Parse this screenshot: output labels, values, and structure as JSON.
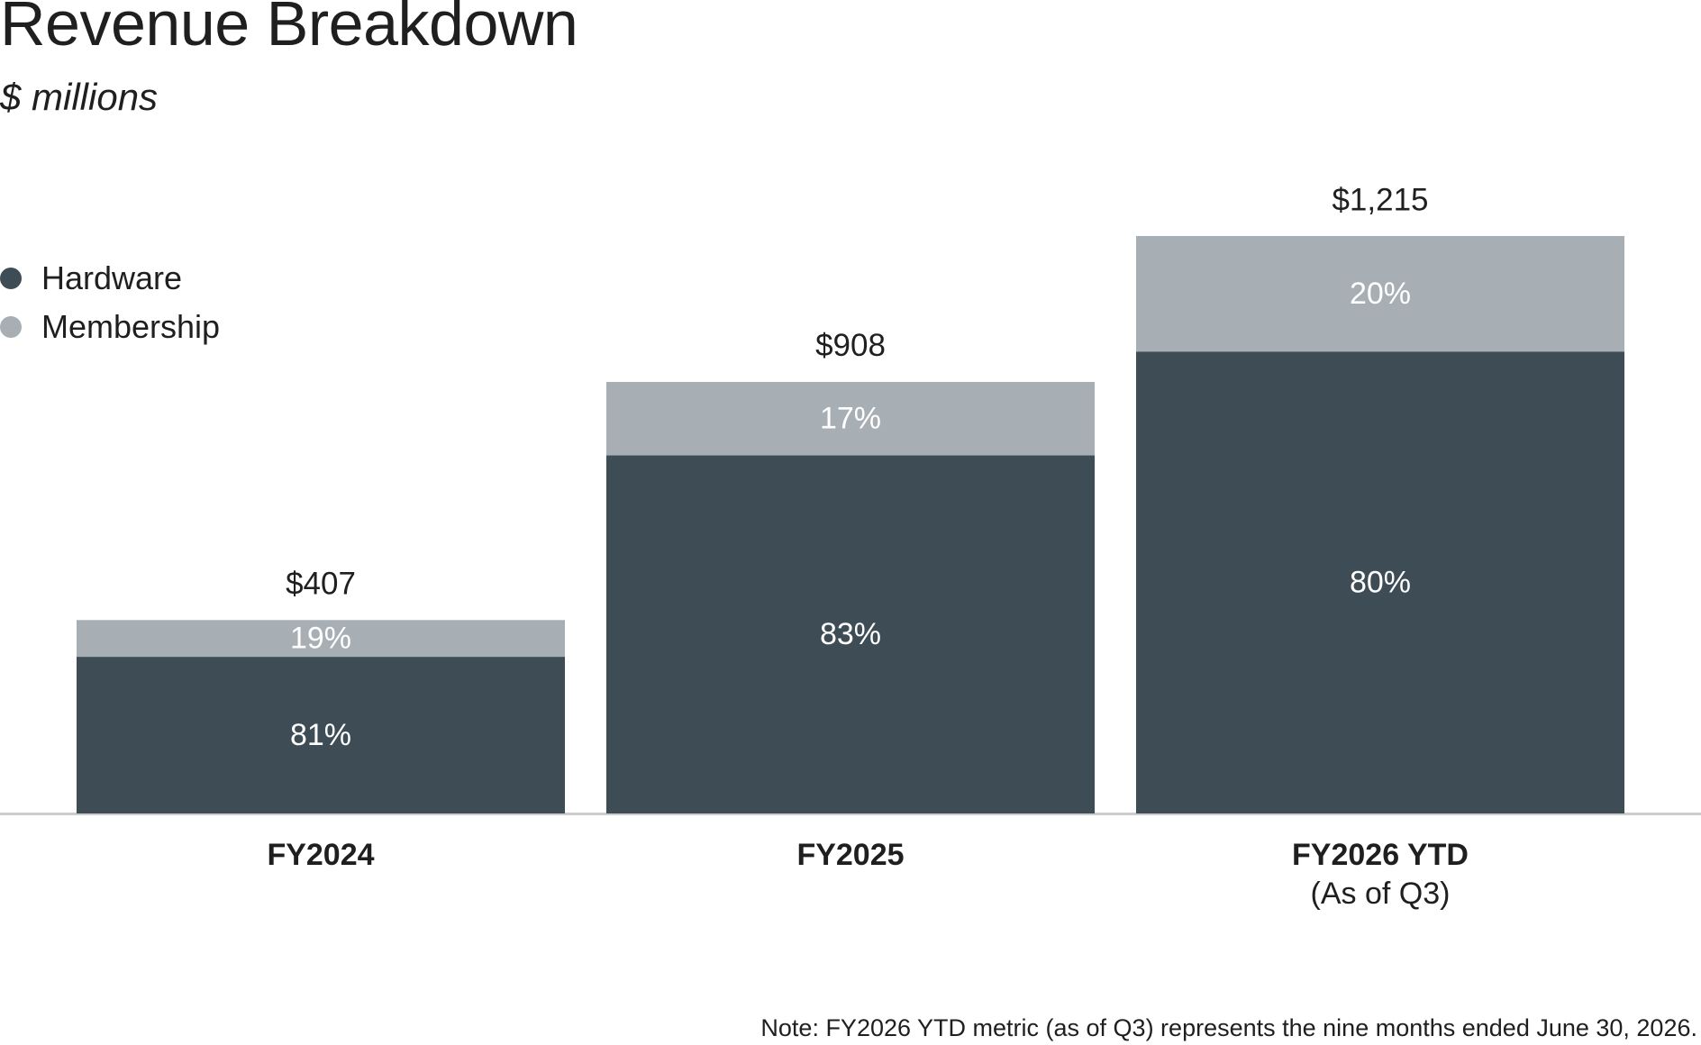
{
  "header": {
    "title": "Revenue Breakdown",
    "subtitle": "$ millions"
  },
  "colors": {
    "hardware": "#3e4c55",
    "membership": "#a7afb4",
    "axis": "#cccccc",
    "segment_label": "#ffffff",
    "text": "#1f1f1f"
  },
  "chart_data": {
    "type": "bar",
    "stacked": true,
    "categories": [
      "FY2024",
      "FY2025",
      "FY2026 YTD"
    ],
    "category_sublabels": [
      "",
      "",
      "(As of Q3)"
    ],
    "totals": [
      407,
      908,
      1215
    ],
    "total_labels": [
      "$407",
      "$908",
      "$1,215"
    ],
    "series": [
      {
        "name": "Hardware",
        "share_percent": [
          81,
          83,
          80
        ],
        "labels": [
          "81%",
          "83%",
          "80%"
        ]
      },
      {
        "name": "Membership",
        "share_percent": [
          19,
          17,
          20
        ],
        "labels": [
          "19%",
          "17%",
          "20%"
        ]
      }
    ],
    "ylim": [
      0,
      1215
    ],
    "grid": false,
    "legend_position": "top-left"
  },
  "footnote": "Note: FY2026 YTD metric (as of Q3) represents the nine months ended June 30, 2026."
}
